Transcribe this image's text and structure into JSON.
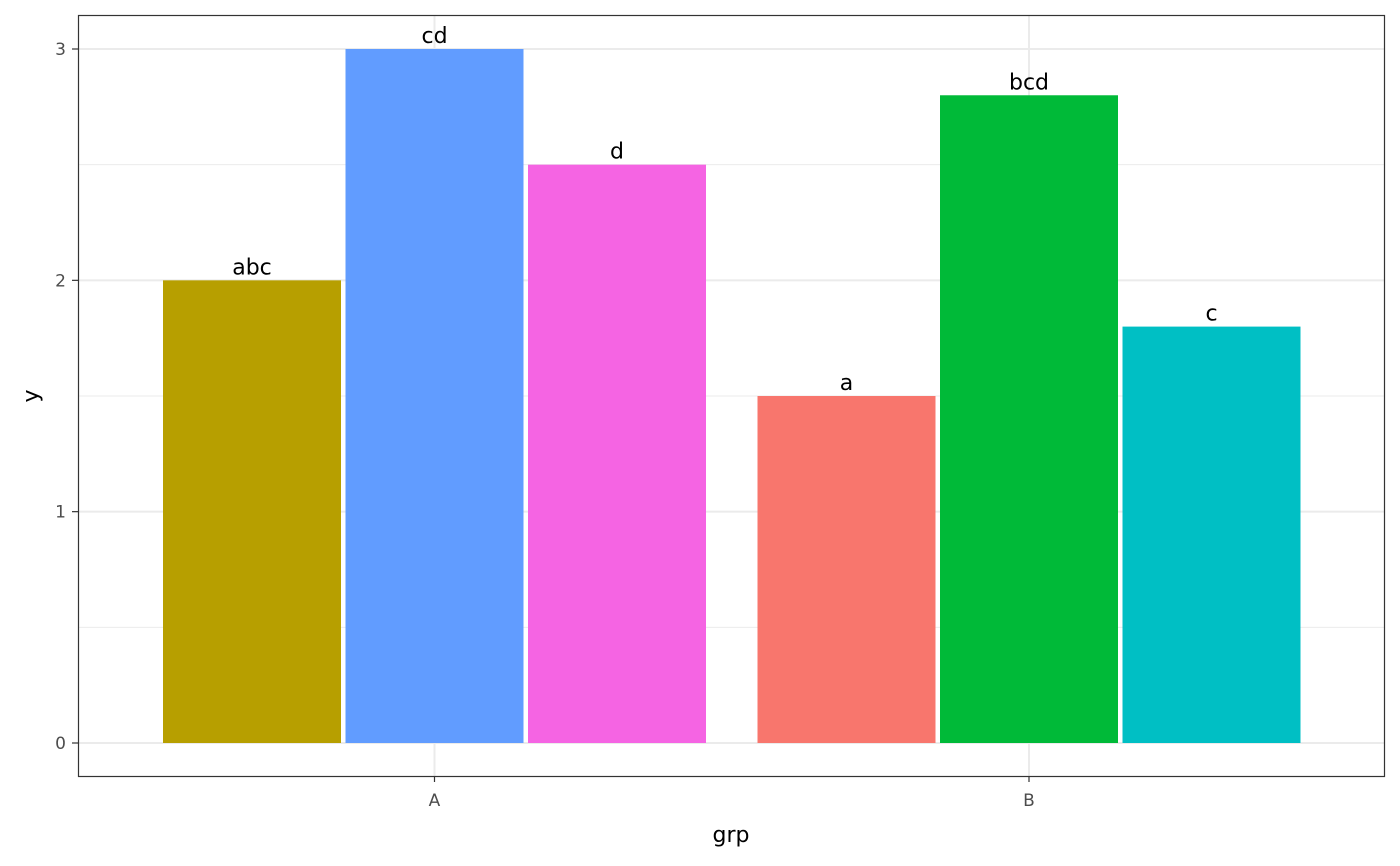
{
  "chart_data": {
    "type": "bar",
    "xlabel": "grp",
    "ylabel": "y",
    "ylim": [
      -0.15,
      3.15
    ],
    "y_ticks": [
      "0",
      "1",
      "2",
      "3"
    ],
    "y_tick_values": [
      0,
      1,
      2,
      3
    ],
    "categories": [
      "A",
      "B"
    ],
    "grid": true,
    "legend": "none",
    "bars": [
      {
        "group": "A",
        "value": 2.0,
        "label": "abc",
        "color": "#B79F00"
      },
      {
        "group": "A",
        "value": 3.0,
        "label": "cd",
        "color": "#619CFF"
      },
      {
        "group": "A",
        "value": 2.5,
        "label": "d",
        "color": "#F564E3"
      },
      {
        "group": "B",
        "value": 1.5,
        "label": "a",
        "color": "#F8766D"
      },
      {
        "group": "B",
        "value": 2.8,
        "label": "bcd",
        "color": "#00BA38"
      },
      {
        "group": "B",
        "value": 1.8,
        "label": "c",
        "color": "#00BFC4"
      }
    ]
  }
}
